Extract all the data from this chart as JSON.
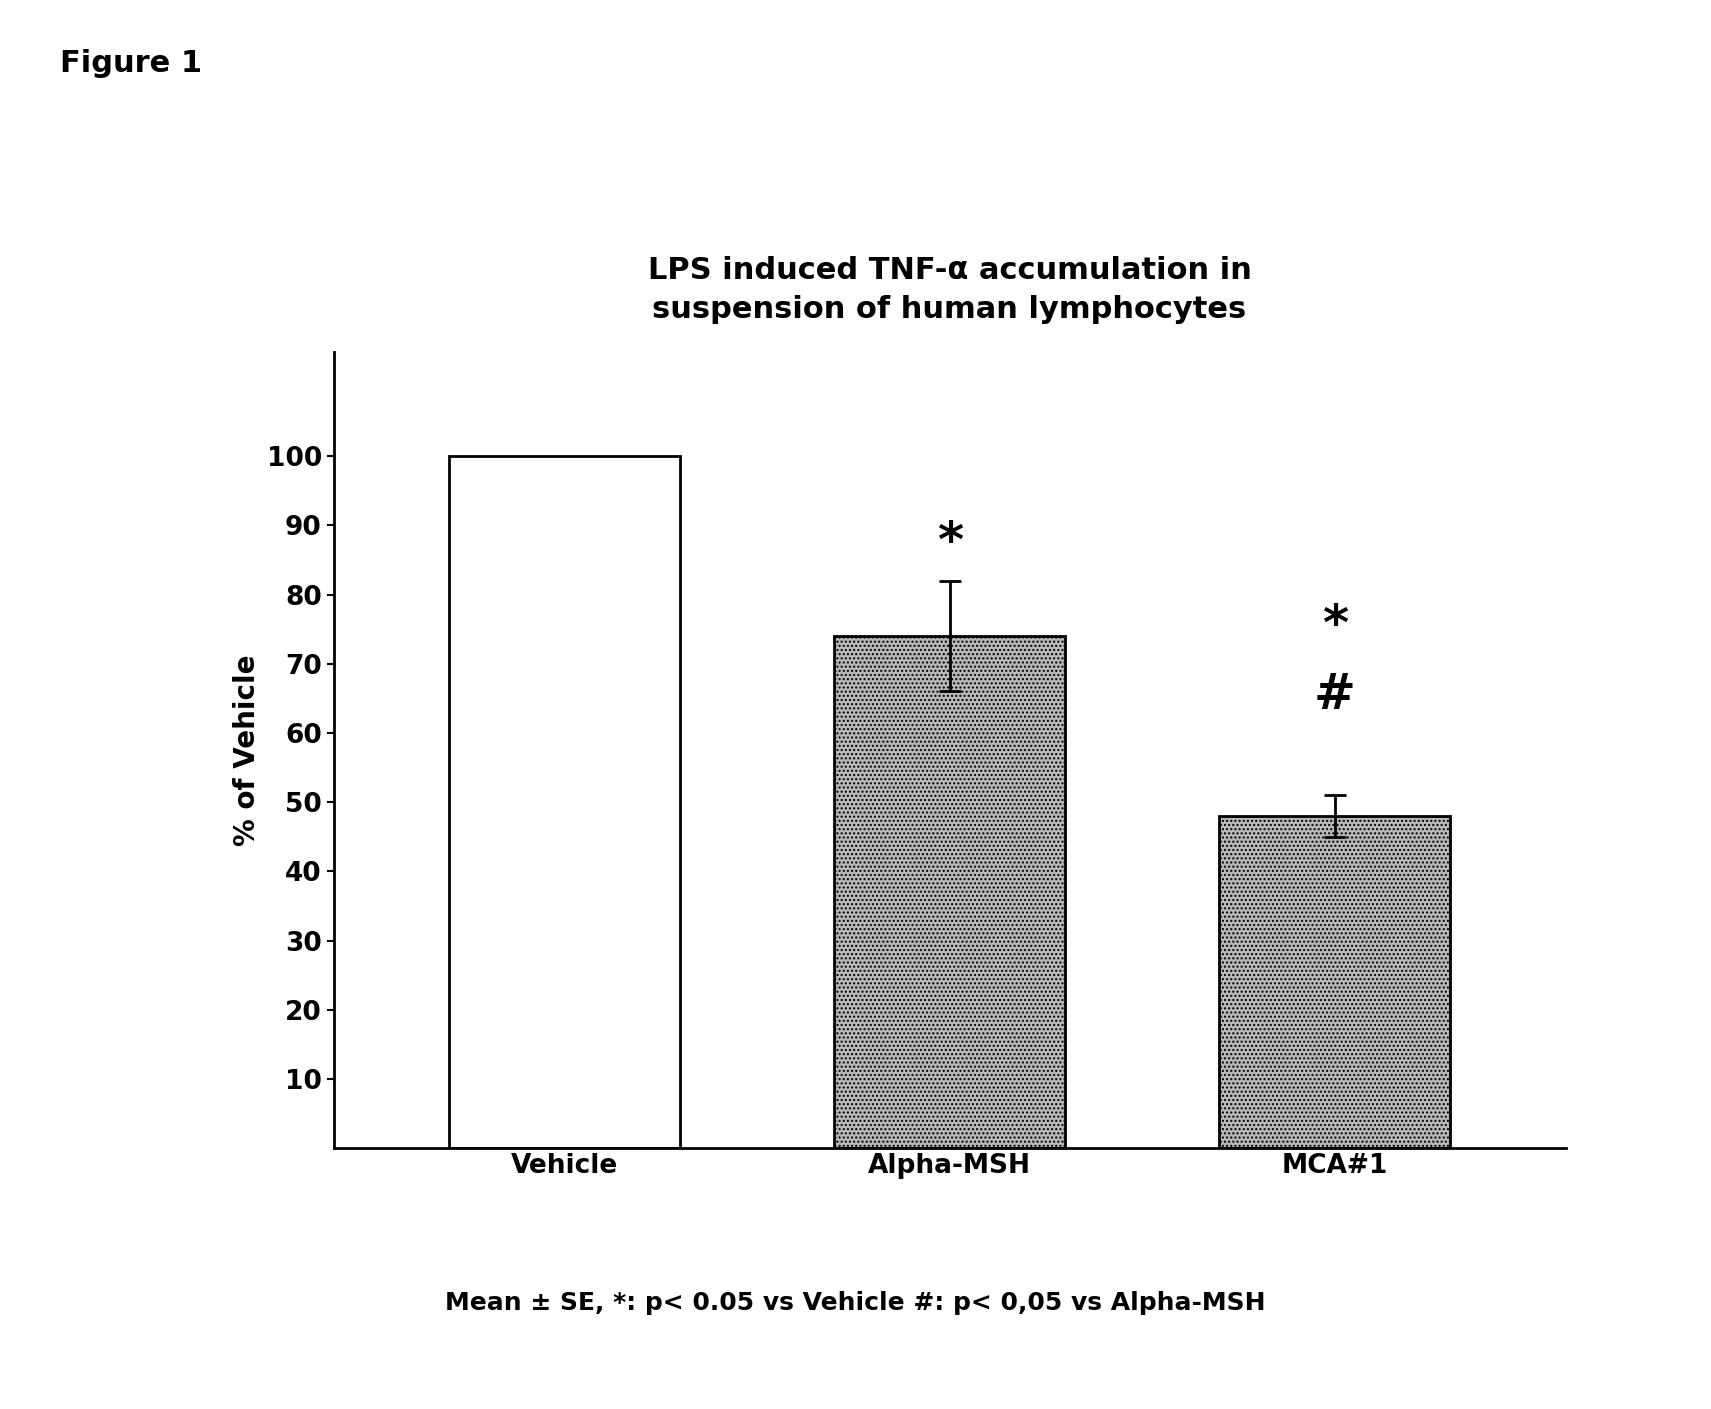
{
  "title": "LPS induced TNF-α accumulation in\nsuspension of human lymphocytes",
  "figure_label": "Figure 1",
  "categories": [
    "Vehicle",
    "Alpha-MSH",
    "MCA#1"
  ],
  "values": [
    100,
    74,
    48
  ],
  "errors": [
    0,
    8,
    3
  ],
  "bar_colors": [
    "#ffffff",
    "#b8b8b8",
    "#b8b8b8"
  ],
  "bar_edge_colors": [
    "#000000",
    "#000000",
    "#000000"
  ],
  "bar_hatches": [
    null,
    "....",
    "...."
  ],
  "ylabel": "% of Vehicle",
  "yticks": [
    10,
    20,
    30,
    40,
    50,
    60,
    70,
    80,
    90,
    100
  ],
  "ylim": [
    0,
    115
  ],
  "xlim": [
    -0.6,
    2.6
  ],
  "footnote": "Mean ± SE, *: p< 0.05 vs Vehicle #: p< 0,05 vs Alpha-MSH",
  "title_fontsize": 22,
  "ylabel_fontsize": 20,
  "tick_fontsize": 19,
  "xlabel_fontsize": 19,
  "footnote_fontsize": 18,
  "figure_label_fontsize": 22,
  "background_color": "#ffffff",
  "bar_width": 0.6,
  "capsize": 8,
  "star_alpha_msh_y": 84,
  "star_mca_y": 72,
  "hash_mca_y": 62
}
